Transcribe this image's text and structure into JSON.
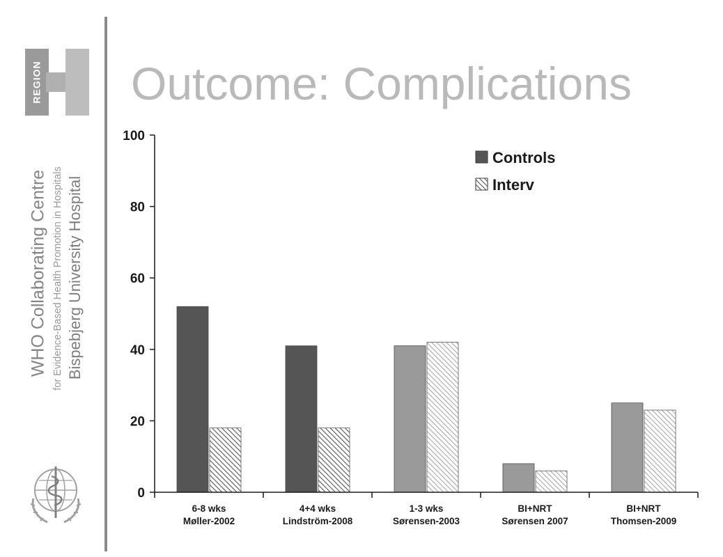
{
  "slide": {
    "title": "Outcome: Complications"
  },
  "branding": {
    "region_logo_text": "REGION",
    "org_line_1": "WHO Collaborating Centre",
    "org_line_2": "for Evidence-Based Health Promotion in Hospitals",
    "org_line_3": "Bispebjerg University Hospital",
    "emblem_icon": "who-emblem-icon"
  },
  "colors": {
    "controls_dark": "#555555",
    "controls_light": "#9a9a9a",
    "interv_hatch": "#555555",
    "axis": "#1a1a1a",
    "title": "#b9b9b9"
  },
  "chart_data": {
    "type": "bar",
    "title": "",
    "xlabel": "",
    "ylabel": "",
    "ylim": [
      0,
      100
    ],
    "yticks": [
      0,
      20,
      40,
      60,
      80,
      100
    ],
    "grid": false,
    "legend_position": "top-right",
    "categories": [
      [
        "6-8 wks",
        "Møller-2002"
      ],
      [
        "4+4 wks",
        "Lindström-2008"
      ],
      [
        "1-3 wks",
        "Sørensen-2003"
      ],
      [
        "BI+NRT",
        "Sørensen 2007"
      ],
      [
        "BI+NRT",
        "Thomsen-2009"
      ]
    ],
    "series": [
      {
        "name": "Controls",
        "values": [
          52,
          41,
          41,
          8,
          25
        ]
      },
      {
        "name": "Interv",
        "values": [
          18,
          18,
          42,
          6,
          23
        ]
      }
    ],
    "bar_shade": [
      "dark",
      "dark",
      "light",
      "light",
      "light"
    ]
  }
}
